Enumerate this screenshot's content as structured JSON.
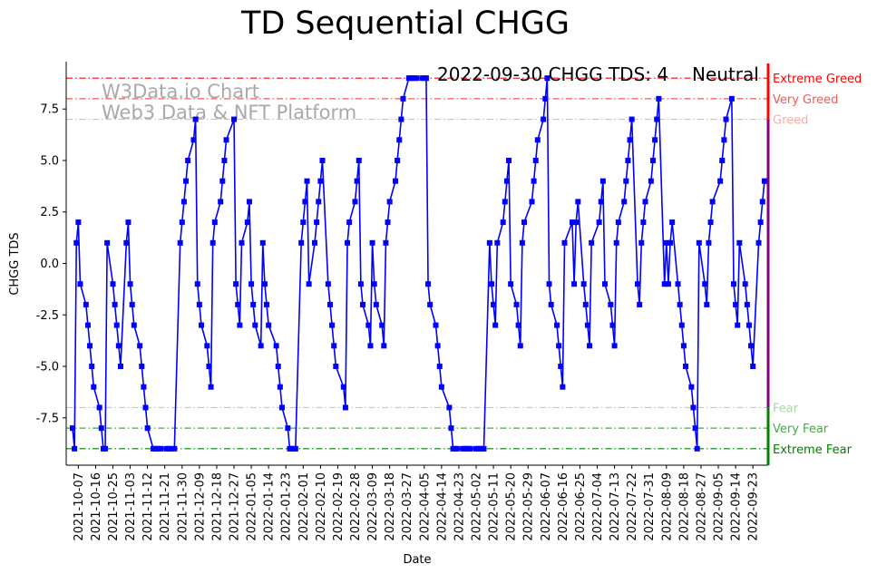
{
  "chart_data": {
    "type": "line",
    "title": "TD Sequential CHGG",
    "xlabel": "Date",
    "ylabel": "CHGG TDS",
    "x_range": [
      "2021-10-04",
      "2022-09-30"
    ],
    "ylim": [
      -9.8,
      9.8
    ],
    "y_ticks": [
      -7.5,
      -5.0,
      -2.5,
      0.0,
      2.5,
      5.0,
      7.5
    ],
    "x_tick_labels": [
      "2021-10-07",
      "2021-10-16",
      "2021-10-25",
      "2021-11-03",
      "2021-11-12",
      "2021-11-21",
      "2021-11-30",
      "2021-12-09",
      "2021-12-18",
      "2021-12-27",
      "2022-01-05",
      "2022-01-14",
      "2022-01-23",
      "2022-02-01",
      "2022-02-10",
      "2022-02-19",
      "2022-02-28",
      "2022-03-09",
      "2022-03-18",
      "2022-03-27",
      "2022-04-05",
      "2022-04-14",
      "2022-04-23",
      "2022-05-02",
      "2022-05-11",
      "2022-05-20",
      "2022-05-29",
      "2022-06-07",
      "2022-06-16",
      "2022-06-25",
      "2022-07-04",
      "2022-07-13",
      "2022-07-22",
      "2022-07-31",
      "2022-08-09",
      "2022-08-18",
      "2022-08-27",
      "2022-09-05",
      "2022-09-14",
      "2022-09-23"
    ],
    "series": [
      {
        "name": "CHGG TDS",
        "color": "#0000ff",
        "marker": "square",
        "points": [
          [
            "2021-10-04",
            -8
          ],
          [
            "2021-10-05",
            -9
          ],
          [
            "2021-10-06",
            1
          ],
          [
            "2021-10-07",
            2
          ],
          [
            "2021-10-08",
            -1
          ],
          [
            "2021-10-11",
            -2
          ],
          [
            "2021-10-12",
            -3
          ],
          [
            "2021-10-13",
            -4
          ],
          [
            "2021-10-14",
            -5
          ],
          [
            "2021-10-15",
            -6
          ],
          [
            "2021-10-18",
            -7
          ],
          [
            "2021-10-19",
            -8
          ],
          [
            "2021-10-20",
            -9
          ],
          [
            "2021-10-21",
            -9
          ],
          [
            "2021-10-22",
            1
          ],
          [
            "2021-10-25",
            -1
          ],
          [
            "2021-10-26",
            -2
          ],
          [
            "2021-10-27",
            -3
          ],
          [
            "2021-10-28",
            -4
          ],
          [
            "2021-10-29",
            -5
          ],
          [
            "2021-11-01",
            1
          ],
          [
            "2021-11-02",
            2
          ],
          [
            "2021-11-03",
            -1
          ],
          [
            "2021-11-04",
            -2
          ],
          [
            "2021-11-05",
            -3
          ],
          [
            "2021-11-08",
            -4
          ],
          [
            "2021-11-09",
            -5
          ],
          [
            "2021-11-10",
            -6
          ],
          [
            "2021-11-11",
            -7
          ],
          [
            "2021-11-12",
            -8
          ],
          [
            "2021-11-15",
            -9
          ],
          [
            "2021-11-16",
            -9
          ],
          [
            "2021-11-17",
            -9
          ],
          [
            "2021-11-18",
            -9
          ],
          [
            "2021-11-19",
            -9
          ],
          [
            "2021-11-22",
            -9
          ],
          [
            "2021-11-23",
            -9
          ],
          [
            "2021-11-24",
            -9
          ],
          [
            "2021-11-26",
            -9
          ],
          [
            "2021-11-29",
            1
          ],
          [
            "2021-11-30",
            2
          ],
          [
            "2021-12-01",
            3
          ],
          [
            "2021-12-02",
            4
          ],
          [
            "2021-12-03",
            5
          ],
          [
            "2021-12-06",
            6
          ],
          [
            "2021-12-07",
            7
          ],
          [
            "2021-12-08",
            -1
          ],
          [
            "2021-12-09",
            -2
          ],
          [
            "2021-12-10",
            -3
          ],
          [
            "2021-12-13",
            -4
          ],
          [
            "2021-12-14",
            -5
          ],
          [
            "2021-12-15",
            -6
          ],
          [
            "2021-12-16",
            1
          ],
          [
            "2021-12-17",
            2
          ],
          [
            "2021-12-20",
            3
          ],
          [
            "2021-12-21",
            4
          ],
          [
            "2021-12-22",
            5
          ],
          [
            "2021-12-23",
            6
          ],
          [
            "2021-12-27",
            7
          ],
          [
            "2021-12-28",
            -1
          ],
          [
            "2021-12-29",
            -2
          ],
          [
            "2021-12-30",
            -3
          ],
          [
            "2021-12-31",
            1
          ],
          [
            "2022-01-03",
            2
          ],
          [
            "2022-01-04",
            3
          ],
          [
            "2022-01-05",
            -1
          ],
          [
            "2022-01-06",
            -2
          ],
          [
            "2022-01-07",
            -3
          ],
          [
            "2022-01-10",
            -4
          ],
          [
            "2022-01-11",
            1
          ],
          [
            "2022-01-12",
            -1
          ],
          [
            "2022-01-13",
            -2
          ],
          [
            "2022-01-14",
            -3
          ],
          [
            "2022-01-18",
            -4
          ],
          [
            "2022-01-19",
            -5
          ],
          [
            "2022-01-20",
            -6
          ],
          [
            "2022-01-21",
            -7
          ],
          [
            "2022-01-24",
            -8
          ],
          [
            "2022-01-25",
            -9
          ],
          [
            "2022-01-26",
            -9
          ],
          [
            "2022-01-27",
            -9
          ],
          [
            "2022-01-28",
            -9
          ],
          [
            "2022-01-31",
            1
          ],
          [
            "2022-02-01",
            2
          ],
          [
            "2022-02-02",
            3
          ],
          [
            "2022-02-03",
            4
          ],
          [
            "2022-02-04",
            -1
          ],
          [
            "2022-02-07",
            1
          ],
          [
            "2022-02-08",
            2
          ],
          [
            "2022-02-09",
            3
          ],
          [
            "2022-02-10",
            4
          ],
          [
            "2022-02-11",
            5
          ],
          [
            "2022-02-14",
            -1
          ],
          [
            "2022-02-15",
            -2
          ],
          [
            "2022-02-16",
            -3
          ],
          [
            "2022-02-17",
            -4
          ],
          [
            "2022-02-18",
            -5
          ],
          [
            "2022-02-22",
            -6
          ],
          [
            "2022-02-23",
            -7
          ],
          [
            "2022-02-24",
            1
          ],
          [
            "2022-02-25",
            2
          ],
          [
            "2022-02-28",
            3
          ],
          [
            "2022-03-01",
            4
          ],
          [
            "2022-03-02",
            5
          ],
          [
            "2022-03-03",
            -1
          ],
          [
            "2022-03-04",
            -2
          ],
          [
            "2022-03-07",
            -3
          ],
          [
            "2022-03-08",
            -4
          ],
          [
            "2022-03-09",
            1
          ],
          [
            "2022-03-10",
            -1
          ],
          [
            "2022-03-11",
            -2
          ],
          [
            "2022-03-14",
            -3
          ],
          [
            "2022-03-15",
            -4
          ],
          [
            "2022-03-16",
            1
          ],
          [
            "2022-03-17",
            2
          ],
          [
            "2022-03-18",
            3
          ],
          [
            "2022-03-21",
            4
          ],
          [
            "2022-03-22",
            5
          ],
          [
            "2022-03-23",
            6
          ],
          [
            "2022-03-24",
            7
          ],
          [
            "2022-03-25",
            8
          ],
          [
            "2022-03-28",
            9
          ],
          [
            "2022-03-29",
            9
          ],
          [
            "2022-03-30",
            9
          ],
          [
            "2022-03-31",
            9
          ],
          [
            "2022-04-01",
            9
          ],
          [
            "2022-04-04",
            9
          ],
          [
            "2022-04-05",
            9
          ],
          [
            "2022-04-06",
            9
          ],
          [
            "2022-04-07",
            -1
          ],
          [
            "2022-04-08",
            -2
          ],
          [
            "2022-04-11",
            -3
          ],
          [
            "2022-04-12",
            -4
          ],
          [
            "2022-04-13",
            -5
          ],
          [
            "2022-04-14",
            -6
          ],
          [
            "2022-04-18",
            -7
          ],
          [
            "2022-04-19",
            -8
          ],
          [
            "2022-04-20",
            -9
          ],
          [
            "2022-04-21",
            -9
          ],
          [
            "2022-04-22",
            -9
          ],
          [
            "2022-04-25",
            -9
          ],
          [
            "2022-04-26",
            -9
          ],
          [
            "2022-04-27",
            -9
          ],
          [
            "2022-04-28",
            -9
          ],
          [
            "2022-04-29",
            -9
          ],
          [
            "2022-05-02",
            -9
          ],
          [
            "2022-05-03",
            -9
          ],
          [
            "2022-05-04",
            -9
          ],
          [
            "2022-05-05",
            -9
          ],
          [
            "2022-05-06",
            -9
          ],
          [
            "2022-05-09",
            1
          ],
          [
            "2022-05-10",
            -1
          ],
          [
            "2022-05-11",
            -2
          ],
          [
            "2022-05-12",
            -3
          ],
          [
            "2022-05-13",
            1
          ],
          [
            "2022-05-16",
            2
          ],
          [
            "2022-05-17",
            3
          ],
          [
            "2022-05-18",
            4
          ],
          [
            "2022-05-19",
            5
          ],
          [
            "2022-05-20",
            -1
          ],
          [
            "2022-05-23",
            -2
          ],
          [
            "2022-05-24",
            -3
          ],
          [
            "2022-05-25",
            -4
          ],
          [
            "2022-05-26",
            1
          ],
          [
            "2022-05-27",
            2
          ],
          [
            "2022-05-31",
            3
          ],
          [
            "2022-06-01",
            4
          ],
          [
            "2022-06-02",
            5
          ],
          [
            "2022-06-03",
            6
          ],
          [
            "2022-06-06",
            7
          ],
          [
            "2022-06-07",
            8
          ],
          [
            "2022-06-08",
            9
          ],
          [
            "2022-06-09",
            -1
          ],
          [
            "2022-06-10",
            -2
          ],
          [
            "2022-06-13",
            -3
          ],
          [
            "2022-06-14",
            -4
          ],
          [
            "2022-06-15",
            -5
          ],
          [
            "2022-06-16",
            -6
          ],
          [
            "2022-06-17",
            1
          ],
          [
            "2022-06-21",
            2
          ],
          [
            "2022-06-22",
            -1
          ],
          [
            "2022-06-23",
            2
          ],
          [
            "2022-06-24",
            3
          ],
          [
            "2022-06-27",
            -1
          ],
          [
            "2022-06-28",
            -2
          ],
          [
            "2022-06-29",
            -3
          ],
          [
            "2022-06-30",
            -4
          ],
          [
            "2022-07-01",
            1
          ],
          [
            "2022-07-05",
            2
          ],
          [
            "2022-07-06",
            3
          ],
          [
            "2022-07-07",
            4
          ],
          [
            "2022-07-08",
            -1
          ],
          [
            "2022-07-11",
            -2
          ],
          [
            "2022-07-12",
            -3
          ],
          [
            "2022-07-13",
            -4
          ],
          [
            "2022-07-14",
            1
          ],
          [
            "2022-07-15",
            2
          ],
          [
            "2022-07-18",
            3
          ],
          [
            "2022-07-19",
            4
          ],
          [
            "2022-07-20",
            5
          ],
          [
            "2022-07-21",
            6
          ],
          [
            "2022-07-22",
            7
          ],
          [
            "2022-07-25",
            -1
          ],
          [
            "2022-07-26",
            -2
          ],
          [
            "2022-07-27",
            1
          ],
          [
            "2022-07-28",
            2
          ],
          [
            "2022-07-29",
            3
          ],
          [
            "2022-08-01",
            4
          ],
          [
            "2022-08-02",
            5
          ],
          [
            "2022-08-03",
            6
          ],
          [
            "2022-08-04",
            7
          ],
          [
            "2022-08-05",
            8
          ],
          [
            "2022-08-08",
            -1
          ],
          [
            "2022-08-09",
            1
          ],
          [
            "2022-08-10",
            -1
          ],
          [
            "2022-08-11",
            1
          ],
          [
            "2022-08-12",
            2
          ],
          [
            "2022-08-15",
            -1
          ],
          [
            "2022-08-16",
            -2
          ],
          [
            "2022-08-17",
            -3
          ],
          [
            "2022-08-18",
            -4
          ],
          [
            "2022-08-19",
            -5
          ],
          [
            "2022-08-22",
            -6
          ],
          [
            "2022-08-23",
            -7
          ],
          [
            "2022-08-24",
            -8
          ],
          [
            "2022-08-25",
            -9
          ],
          [
            "2022-08-26",
            1
          ],
          [
            "2022-08-29",
            -1
          ],
          [
            "2022-08-30",
            -2
          ],
          [
            "2022-08-31",
            1
          ],
          [
            "2022-09-01",
            2
          ],
          [
            "2022-09-02",
            3
          ],
          [
            "2022-09-06",
            4
          ],
          [
            "2022-09-07",
            5
          ],
          [
            "2022-09-08",
            6
          ],
          [
            "2022-09-09",
            7
          ],
          [
            "2022-09-12",
            8
          ],
          [
            "2022-09-13",
            -1
          ],
          [
            "2022-09-14",
            -2
          ],
          [
            "2022-09-15",
            -3
          ],
          [
            "2022-09-16",
            1
          ],
          [
            "2022-09-19",
            -1
          ],
          [
            "2022-09-20",
            -2
          ],
          [
            "2022-09-21",
            -3
          ],
          [
            "2022-09-22",
            -4
          ],
          [
            "2022-09-23",
            -5
          ],
          [
            "2022-09-26",
            1
          ],
          [
            "2022-09-27",
            2
          ],
          [
            "2022-09-28",
            3
          ],
          [
            "2022-09-29",
            4
          ],
          [
            "2022-09-30",
            4
          ]
        ]
      }
    ],
    "reference_lines": [
      {
        "label": "Extreme Greed",
        "value": 9,
        "color": "#ff0000",
        "style": "dashdot"
      },
      {
        "label": "Very Greed",
        "value": 8,
        "color": "#ff5555",
        "style": "dashdot"
      },
      {
        "label": "Greed",
        "value": 7,
        "color": "#ffaaaa",
        "style": "dashdot"
      },
      {
        "label": "Fear",
        "value": -7,
        "color": "#a8d8a8",
        "style": "dashdot"
      },
      {
        "label": "Very Fear",
        "value": -8,
        "color": "#44aa44",
        "style": "dashdot"
      },
      {
        "label": "Extreme Fear",
        "value": -9,
        "color": "#008000",
        "style": "dashdot"
      }
    ],
    "side_bar": {
      "color_top": "#ff0000",
      "color_middle": "#800080",
      "color_bottom": "#008000",
      "middle_range": [
        -7,
        7
      ]
    },
    "watermark": [
      "W3Data.io Chart",
      "Web3 Data & NFT Platform"
    ],
    "annotation": {
      "text": "2022-09-30 CHGG TDS: 4",
      "status": "Neutral",
      "status_color": "#800080"
    }
  }
}
